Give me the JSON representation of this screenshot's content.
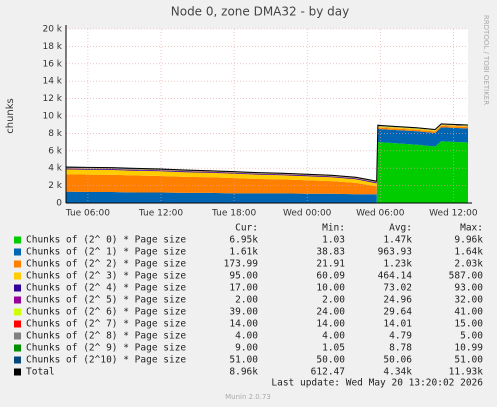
{
  "chart_data": {
    "type": "stacked-area",
    "title": "Node 0, zone DMA32 - by day",
    "ylabel": "chunks",
    "side_label": "RRDTOOL / TOBI OETIKER",
    "x": [
      4.2,
      6,
      8,
      10,
      12,
      14,
      16,
      18,
      20,
      22,
      24,
      26,
      28,
      29.7,
      29.8,
      31,
      33,
      34.5,
      35,
      37.2
    ],
    "xlim": [
      4.2,
      37.2
    ],
    "xticks": [
      {
        "value": 6,
        "label": "Tue 06:00"
      },
      {
        "value": 12,
        "label": "Tue 12:00"
      },
      {
        "value": 18,
        "label": "Tue 18:00"
      },
      {
        "value": 24,
        "label": "Wed 00:00"
      },
      {
        "value": 30,
        "label": "Wed 06:00"
      },
      {
        "value": 36,
        "label": "Wed 12:00"
      }
    ],
    "ylim": [
      0,
      20000
    ],
    "yticks": [
      0,
      {
        "value": 2000,
        "label": "2 k"
      },
      {
        "value": 4000,
        "label": "4 k"
      },
      {
        "value": 6000,
        "label": "6 k"
      },
      {
        "value": 8000,
        "label": "8 k"
      },
      {
        "value": 10000,
        "label": "10 k"
      },
      {
        "value": 12000,
        "label": "12 k"
      },
      {
        "value": 14000,
        "label": "14 k"
      },
      {
        "value": 16000,
        "label": "16 k"
      },
      {
        "value": 18000,
        "label": "18 k"
      },
      {
        "value": 20000,
        "label": "20 k"
      }
    ],
    "grid": true,
    "stat_headers": [
      "Cur:",
      "Min:",
      "Avg:",
      "Max:"
    ],
    "series": [
      {
        "name": "Chunks of (2^ 0) * Page size",
        "color": "#00cc00",
        "stats": [
          "6.95k",
          "1.03",
          "1.47k",
          "9.96k"
        ],
        "values": [
          10,
          10,
          10,
          10,
          10,
          10,
          10,
          10,
          10,
          10,
          10,
          10,
          10,
          10,
          7000,
          6900,
          6700,
          6500,
          7100,
          6950
        ]
      },
      {
        "name": "Chunks of (2^ 1) * Page size",
        "color": "#0066b3",
        "stats": [
          "1.61k",
          "38.83",
          "963.93",
          "1.64k"
        ],
        "values": [
          1300,
          1250,
          1250,
          1200,
          1200,
          1150,
          1150,
          1100,
          1100,
          1100,
          1050,
          1050,
          1000,
          1000,
          1500,
          1500,
          1550,
          1550,
          1600,
          1610
        ]
      },
      {
        "name": "Chunks of (2^ 2) * Page size",
        "color": "#ff8000",
        "stats": [
          "173.99",
          "21.91",
          "1.23k",
          "2.03k"
        ],
        "values": [
          2000,
          2000,
          1980,
          1950,
          1900,
          1850,
          1800,
          1750,
          1650,
          1600,
          1550,
          1450,
          1300,
          900,
          180,
          175,
          175,
          175,
          174,
          174
        ]
      },
      {
        "name": "Chunks of (2^ 3) * Page size",
        "color": "#ffcc00",
        "stats": [
          "95.00",
          "60.09",
          "464.14",
          "587.00"
        ],
        "values": [
          560,
          560,
          550,
          550,
          540,
          530,
          520,
          510,
          500,
          480,
          470,
          450,
          420,
          350,
          100,
          98,
          96,
          95,
          95,
          95
        ]
      },
      {
        "name": "Chunks of (2^ 4) * Page size",
        "color": "#330099",
        "stats": [
          "17.00",
          "10.00",
          "73.02",
          "93.00"
        ],
        "values": [
          90,
          90,
          90,
          90,
          90,
          90,
          90,
          90,
          90,
          90,
          90,
          90,
          90,
          90,
          17,
          17,
          17,
          17,
          17,
          17
        ]
      },
      {
        "name": "Chunks of (2^ 5) * Page size",
        "color": "#990099",
        "stats": [
          "2.00",
          "2.00",
          "24.96",
          "32.00"
        ],
        "values": [
          30,
          30,
          30,
          30,
          30,
          30,
          30,
          30,
          30,
          30,
          30,
          30,
          30,
          30,
          2,
          2,
          2,
          2,
          2,
          2
        ]
      },
      {
        "name": "Chunks of (2^ 6) * Page size",
        "color": "#ccff00",
        "stats": [
          "39.00",
          "24.00",
          "29.64",
          "41.00"
        ],
        "values": [
          30,
          30,
          30,
          30,
          30,
          30,
          30,
          30,
          30,
          30,
          30,
          30,
          30,
          30,
          39,
          39,
          39,
          39,
          39,
          39
        ]
      },
      {
        "name": "Chunks of (2^ 7) * Page size",
        "color": "#ff0000",
        "stats": [
          "14.00",
          "14.00",
          "14.01",
          "15.00"
        ],
        "values": [
          14,
          14,
          14,
          14,
          14,
          14,
          14,
          14,
          14,
          14,
          14,
          14,
          14,
          14,
          14,
          14,
          14,
          14,
          14,
          14
        ]
      },
      {
        "name": "Chunks of (2^ 8) * Page size",
        "color": "#808080",
        "stats": [
          "4.00",
          "4.00",
          "4.79",
          "5.00"
        ],
        "values": [
          5,
          5,
          5,
          5,
          5,
          5,
          5,
          5,
          5,
          5,
          5,
          5,
          5,
          5,
          4,
          4,
          4,
          4,
          4,
          4
        ]
      },
      {
        "name": "Chunks of (2^ 9) * Page size",
        "color": "#008f00",
        "stats": [
          "9.00",
          "1.05",
          "8.78",
          "10.99"
        ],
        "values": [
          9,
          9,
          9,
          9,
          9,
          9,
          9,
          9,
          9,
          9,
          9,
          9,
          9,
          9,
          9,
          9,
          9,
          9,
          9,
          9
        ]
      },
      {
        "name": "Chunks of (2^10) * Page size",
        "color": "#00487d",
        "stats": [
          "51.00",
          "50.00",
          "50.06",
          "51.00"
        ],
        "values": [
          50,
          50,
          50,
          50,
          50,
          50,
          50,
          50,
          50,
          50,
          50,
          50,
          50,
          50,
          51,
          51,
          51,
          51,
          51,
          51
        ]
      }
    ],
    "total": {
      "name": "Total",
      "color": "#000000",
      "stats": [
        "8.96k",
        "612.47",
        "4.34k",
        "11.93k"
      ],
      "values": [
        4140,
        4090,
        4060,
        3980,
        3910,
        3800,
        3700,
        3600,
        3490,
        3420,
        3310,
        3190,
        2960,
        2510,
        8940,
        8820,
        8650,
        8450,
        9100,
        8960
      ]
    },
    "last_update": "Last update: Wed May 20 13:20:02 2026",
    "footer": "Munin 2.0.73"
  }
}
